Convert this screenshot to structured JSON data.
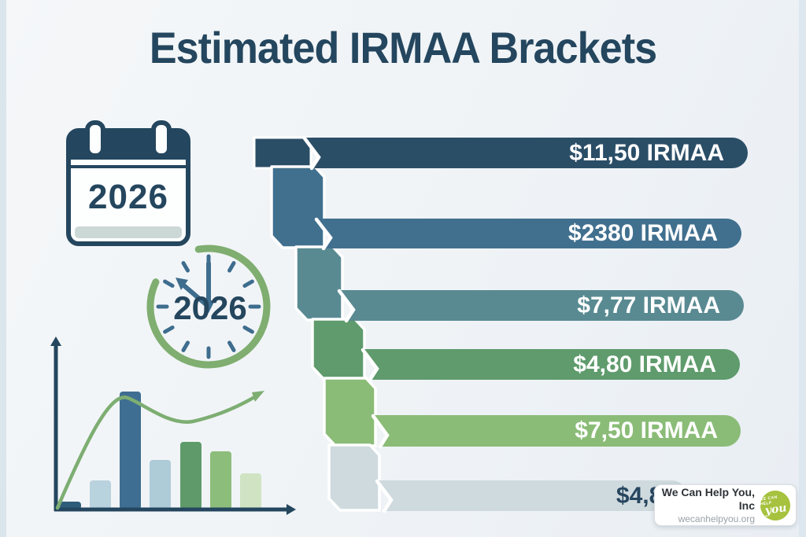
{
  "title": "Estimated IRMAA Brackets",
  "calendar": {
    "year": "2026"
  },
  "clock": {
    "year": "2026"
  },
  "brackets": [
    {
      "label": "$11,50 IRMAA",
      "color": "#2b4e67",
      "text_color": "#ffffff"
    },
    {
      "label": "$2380 IRMAA",
      "color": "#41708f",
      "text_color": "#ffffff"
    },
    {
      "label": "$7,77 IRMAA",
      "color": "#598a92",
      "text_color": "#ffffff"
    },
    {
      "label": "$4,80 IRMAA",
      "color": "#5f9b6c",
      "text_color": "#ffffff"
    },
    {
      "label": "$7,50 IRMAA",
      "color": "#8abc77",
      "text_color": "#ffffff"
    },
    {
      "label": "$4,80",
      "color": "#cfdade",
      "text_color": "#27465f"
    }
  ],
  "footer_logo": {
    "company": "We Can Help You, Inc",
    "website": "wecanhelpyou.org",
    "badge_line1": "WE CAN HELP",
    "badge_line2": "you",
    "badge_color": "#a6c23e"
  },
  "accent_colors": {
    "navy": "#24465e",
    "green_arc": "#7fae70",
    "tick_teal": "#3e6d8e"
  },
  "chart_data": [
    {
      "type": "bar",
      "title": "Estimated IRMAA Brackets",
      "orientation": "horizontal",
      "categories": [
        "$11,50 IRMAA",
        "$2380 IRMAA",
        "$7,77 IRMAA",
        "$4,80 IRMAA",
        "$7,50 IRMAA",
        "$4,80"
      ],
      "values": [
        627,
        539,
        513,
        478,
        466,
        393
      ],
      "unit": "pill length, px (cascading staircase funnel, widest at top)",
      "colors": [
        "#2b4e67",
        "#41708f",
        "#598a92",
        "#5f9b6c",
        "#8abc77",
        "#cfdade"
      ],
      "xlabel": "",
      "ylabel": "",
      "legend": "none",
      "grid": false,
      "annotation": "Year 2026 shown on calendar and clock icons"
    },
    {
      "type": "bar",
      "title": "decorative trend mini-chart (no labels)",
      "categories": [
        "1",
        "2",
        "3",
        "4",
        "5",
        "6",
        "7"
      ],
      "values": [
        10,
        37,
        150,
        63,
        86,
        74,
        46
      ],
      "unit": "bar height, px",
      "colors": [
        "#2e5d7a",
        "#b9d3de",
        "#3e6e91",
        "#aecbd8",
        "#5f9b6a",
        "#8cbd7b",
        "#d0e4c4"
      ],
      "overlay_line": "green curve rising to arrow: points approx (0,2) (27,48) (3,144) (5,110) (7,145) in (bar-index, px-above-axis)",
      "xlabel": "",
      "ylabel": "",
      "grid": false,
      "legend": "none"
    }
  ]
}
